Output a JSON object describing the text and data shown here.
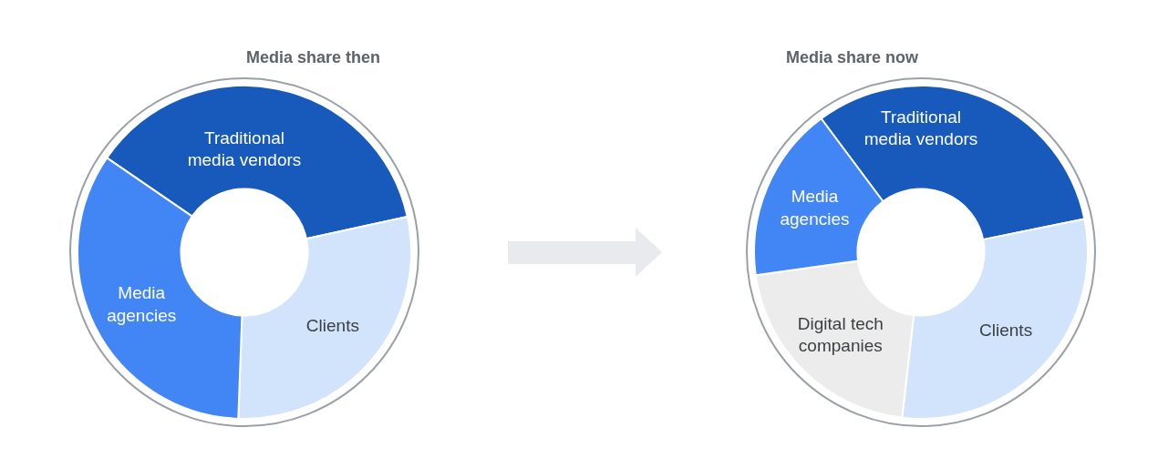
{
  "chart_data": [
    {
      "type": "donut",
      "title": "Media share then",
      "categories": [
        "Traditional\nmedia vendors",
        "Clients",
        "Media\nagencies"
      ],
      "values": [
        37,
        29,
        34
      ],
      "colors": [
        "#185abc",
        "#d2e3fc",
        "#4285f4"
      ]
    },
    {
      "type": "donut",
      "title": "Media share now",
      "categories": [
        "Traditional\nmedia vendors",
        "Clients",
        "Digital tech\ncompanies",
        "Media\nagencies"
      ],
      "values": [
        32,
        30,
        21,
        17
      ],
      "colors": [
        "#185abc",
        "#d2e3fc",
        "#ececec",
        "#4285f4"
      ]
    }
  ]
}
